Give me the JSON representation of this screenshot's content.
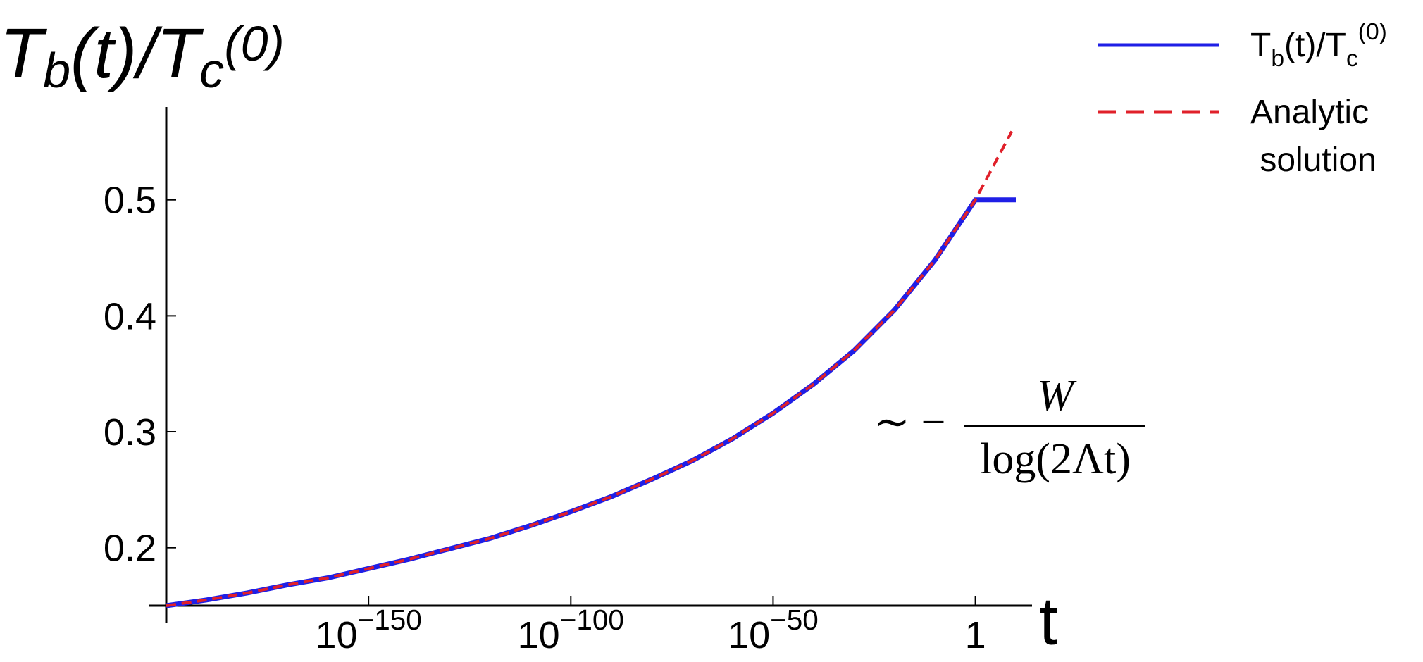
{
  "chart_data": {
    "type": "line",
    "y_label": "Tb(t)/Tc(0)",
    "x_label": "t",
    "annotation": {
      "prefix": "∼ −",
      "numerator": "W",
      "denominator": "log(2Λt)"
    },
    "log_x": true,
    "xlim": [
      1e-200,
      100000000000000.0
    ],
    "ylim": [
      0.15,
      0.58
    ],
    "xticks": [
      {
        "value": 1e-150,
        "label": "10−150"
      },
      {
        "value": 1e-100,
        "label": "10−100"
      },
      {
        "value": 1e-50,
        "label": "10−50"
      },
      1
    ],
    "yticks": [
      0.2,
      0.3,
      0.4,
      0.5
    ],
    "series": [
      {
        "name": "Tb(t)/Tc(0)",
        "color": "#1f1fe6",
        "style": "solid",
        "x": [
          1e-200,
          1e-190,
          1e-180,
          1e-170,
          1e-160,
          1e-150,
          1e-140,
          1e-130,
          1e-120,
          1e-110,
          1e-100,
          1e-90,
          1e-80,
          1e-70,
          1e-60,
          1e-50,
          1e-40,
          1e-30,
          1e-20,
          1e-10,
          1,
          10000000000.0
        ],
        "values": [
          0.15,
          0.155,
          0.161,
          0.168,
          0.174,
          0.182,
          0.19,
          0.199,
          0.208,
          0.219,
          0.231,
          0.244,
          0.259,
          0.275,
          0.294,
          0.316,
          0.341,
          0.37,
          0.405,
          0.448,
          0.5,
          0.5
        ]
      },
      {
        "name": "Analytic solution",
        "color": "#e0202a",
        "style": "dashed",
        "x": [
          1e-200,
          1e-190,
          1e-180,
          1e-170,
          1e-160,
          1e-150,
          1e-140,
          1e-130,
          1e-120,
          1e-110,
          1e-100,
          1e-90,
          1e-80,
          1e-70,
          1e-60,
          1e-50,
          1e-40,
          1e-30,
          1e-20,
          1e-10,
          1,
          1000000000.0
        ],
        "values": [
          0.15,
          0.155,
          0.161,
          0.168,
          0.174,
          0.182,
          0.19,
          0.199,
          0.208,
          0.219,
          0.231,
          0.244,
          0.259,
          0.275,
          0.294,
          0.316,
          0.341,
          0.37,
          0.405,
          0.448,
          0.5,
          0.559
        ]
      }
    ]
  }
}
